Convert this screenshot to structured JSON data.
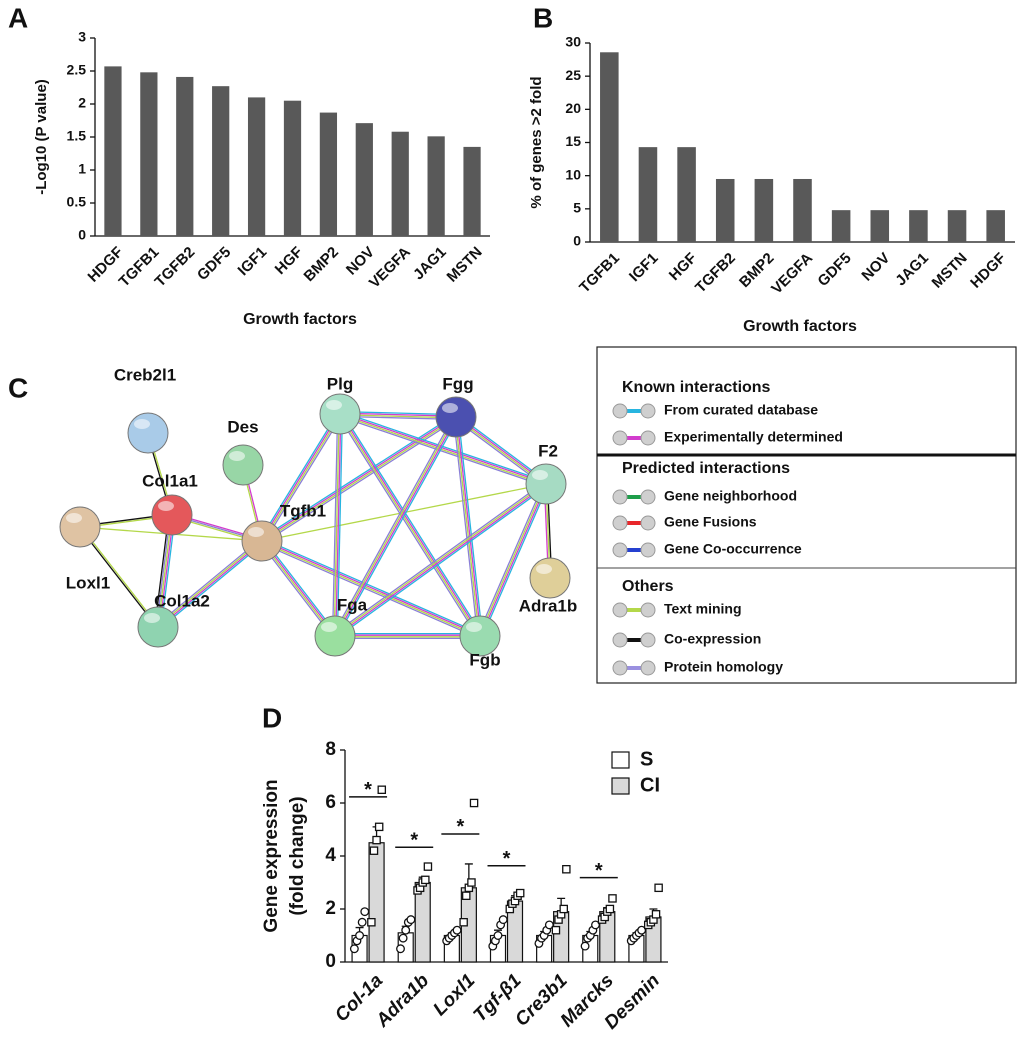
{
  "chart_data": [
    {
      "type": "bar",
      "panel": "A",
      "ylabel": "-Log10 (P value)",
      "xlabel": "Growth factors",
      "categories": [
        "HDGF",
        "TGFB1",
        "TGFB2",
        "GDF5",
        "IGF1",
        "HGF",
        "BMP2",
        "NOV",
        "VEGFA",
        "JAG1",
        "MSTN"
      ],
      "values": [
        2.57,
        2.48,
        2.41,
        2.27,
        2.1,
        2.05,
        1.87,
        1.71,
        1.58,
        1.51,
        1.35
      ],
      "color": "#595959",
      "ylim": [
        0,
        3
      ],
      "yticks": [
        0,
        0.5,
        1,
        1.5,
        2,
        2.5,
        3
      ]
    },
    {
      "type": "bar",
      "panel": "B",
      "ylabel": "% of genes >2 fold",
      "xlabel": "Growth factors",
      "categories": [
        "TGFB1",
        "IGF1",
        "HGF",
        "TGFB2",
        "BMP2",
        "VEGFA",
        "GDF5",
        "NOV",
        "JAG1",
        "MSTN",
        "HDGF"
      ],
      "values": [
        28.6,
        14.3,
        14.3,
        9.5,
        9.5,
        9.5,
        4.8,
        4.8,
        4.8,
        4.8,
        4.8
      ],
      "color": "#595959",
      "ylim": [
        0,
        30
      ],
      "yticks": [
        0,
        5,
        10,
        15,
        20,
        25,
        30
      ]
    },
    {
      "type": "grouped_bar",
      "panel": "D",
      "ylabel": [
        "Gene expression",
        "(fold change)"
      ],
      "categories": [
        "Col-1a",
        "Adra1b",
        "Loxl1",
        "Tgf-β1",
        "Cre3b1",
        "Marcks",
        "Desmin"
      ],
      "series": [
        {
          "name": "S",
          "color": "#ffffff",
          "values": [
            1.0,
            1.1,
            1.0,
            1.0,
            1.0,
            1.0,
            1.0
          ],
          "errors": [
            0.3,
            0.25,
            0.1,
            0.2,
            0.15,
            0.15,
            0.1
          ],
          "points": [
            [
              0.5,
              0.8,
              1.0,
              1.5,
              1.9
            ],
            [
              0.5,
              0.9,
              1.2,
              1.5,
              1.6
            ],
            [
              0.8,
              0.9,
              1.0,
              1.1,
              1.2
            ],
            [
              0.6,
              0.8,
              1.0,
              1.4,
              1.6
            ],
            [
              0.7,
              0.9,
              1.0,
              1.2,
              1.4
            ],
            [
              0.6,
              0.9,
              1.0,
              1.2,
              1.4
            ],
            [
              0.8,
              0.9,
              1.0,
              1.1,
              1.2
            ]
          ]
        },
        {
          "name": "CI",
          "color": "#d9d9d9",
          "values": [
            4.5,
            3.0,
            2.8,
            2.3,
            1.9,
            1.9,
            1.7
          ],
          "errors": [
            0.6,
            0.2,
            0.9,
            0.2,
            0.5,
            0.15,
            0.3
          ],
          "points": [
            [
              1.5,
              4.2,
              4.6,
              5.1,
              6.5
            ],
            [
              2.7,
              2.8,
              3.0,
              3.1,
              3.6
            ],
            [
              1.5,
              2.5,
              2.8,
              3.0,
              6.0
            ],
            [
              2.0,
              2.2,
              2.3,
              2.5,
              2.6
            ],
            [
              1.2,
              1.6,
              1.8,
              2.0,
              3.5
            ],
            [
              1.6,
              1.7,
              1.9,
              2.0,
              2.4
            ],
            [
              1.4,
              1.5,
              1.6,
              1.8,
              2.8
            ]
          ]
        }
      ],
      "significance": [
        "*",
        "*",
        "*",
        "*",
        null,
        "*",
        null
      ],
      "ylim": [
        0,
        8
      ],
      "yticks": [
        0,
        2,
        4,
        6,
        8
      ]
    }
  ],
  "network": {
    "panel": "C",
    "nodes": [
      {
        "label": "Creb2l1",
        "color": "#a9cbe8"
      },
      {
        "label": "Des",
        "color": "#98d6a6"
      },
      {
        "label": "Col1a1",
        "color": "#e4585b"
      },
      {
        "label": "Loxl1",
        "color": "#dfc3a3"
      },
      {
        "label": "Tgfb1",
        "color": "#d8b794"
      },
      {
        "label": "Col1a2",
        "color": "#8fd3b0"
      },
      {
        "label": "Plg",
        "color": "#a8dfc7"
      },
      {
        "label": "Fgg",
        "color": "#4b50b0"
      },
      {
        "label": "F2",
        "color": "#a6dbc3"
      },
      {
        "label": "Adra1b",
        "color": "#dfcf99"
      },
      {
        "label": "Fga",
        "color": "#9adf9f"
      },
      {
        "label": "Fgb",
        "color": "#9adbb0"
      }
    ],
    "legend": [
      {
        "title": "Known interactions",
        "items": [
          {
            "label": "From curated database",
            "color": "#27b5e0"
          },
          {
            "label": "Experimentally determined",
            "color": "#d23ccd"
          }
        ]
      },
      {
        "title": "Predicted interactions",
        "items": [
          {
            "label": "Gene neighborhood",
            "color": "#1e9e4a"
          },
          {
            "label": "Gene Fusions",
            "color": "#e8262a"
          },
          {
            "label": "Gene Co-occurrence",
            "color": "#2540d0"
          }
        ]
      },
      {
        "title": "Others",
        "items": [
          {
            "label": "Text mining",
            "color": "#b4d84a"
          },
          {
            "label": "Co-expression",
            "color": "#111111"
          },
          {
            "label": "Protein homology",
            "color": "#9a90e0"
          }
        ]
      }
    ]
  }
}
